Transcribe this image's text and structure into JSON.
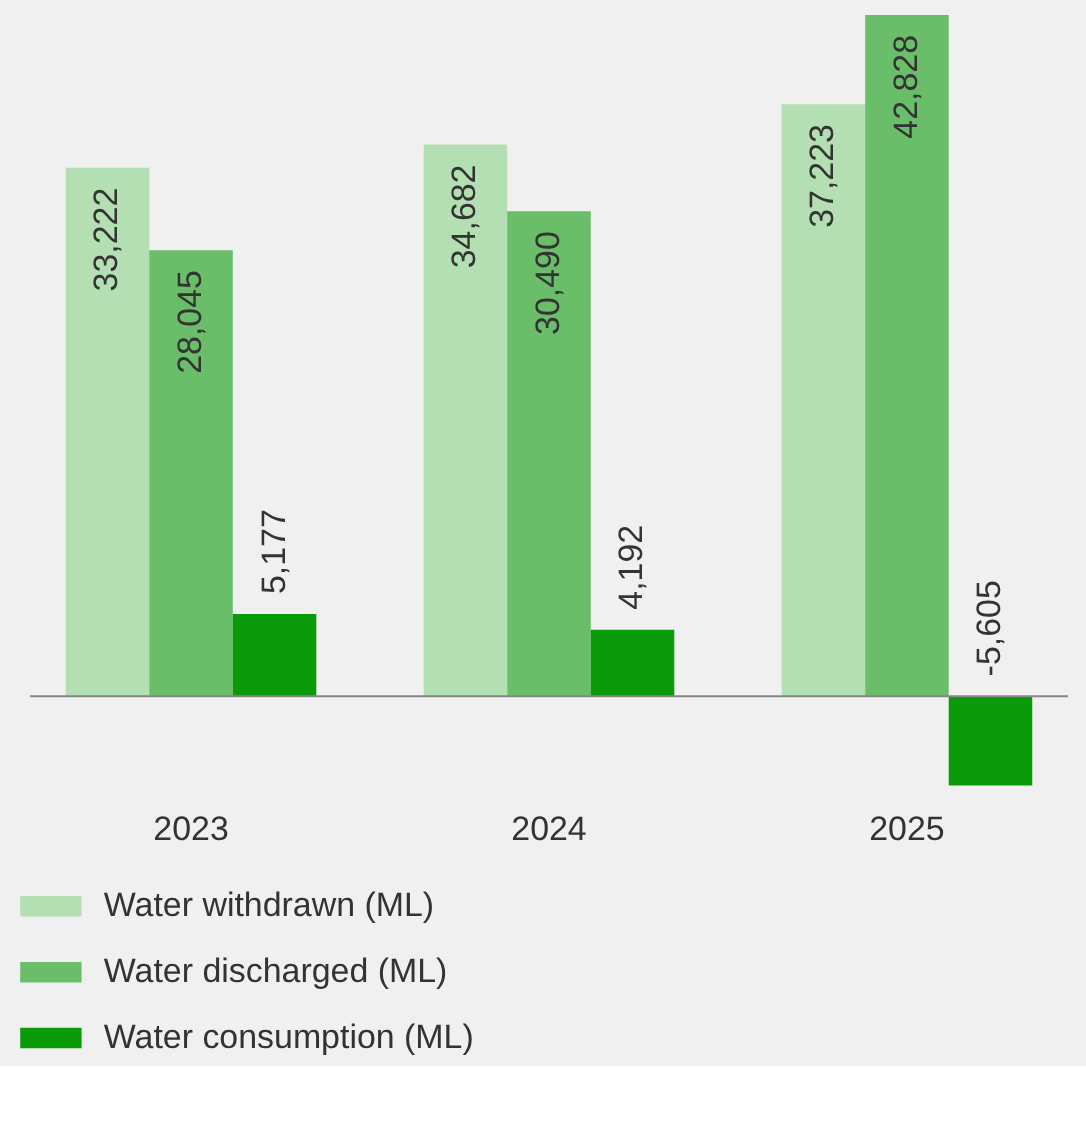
{
  "chart_data": {
    "type": "bar",
    "categories": [
      "2023",
      "2024",
      "2025"
    ],
    "series": [
      {
        "name": "Water withdrawn (ML)",
        "color": "#b3dfb3",
        "values": [
          33222,
          34682,
          37223
        ],
        "value_labels": [
          "33,222",
          "34,682",
          "37,223"
        ]
      },
      {
        "name": "Water discharged (ML)",
        "color": "#6abd69",
        "values": [
          28045,
          30490,
          42828
        ],
        "value_labels": [
          "28,045",
          "30,490",
          "42,828"
        ]
      },
      {
        "name": "Water consumption (ML)",
        "color": "#0a9a0a",
        "values": [
          5177,
          4192,
          -5605
        ],
        "value_labels": [
          "5,177",
          "4,192",
          "-5,605"
        ]
      }
    ],
    "legend": "bottom",
    "grid": false
  }
}
